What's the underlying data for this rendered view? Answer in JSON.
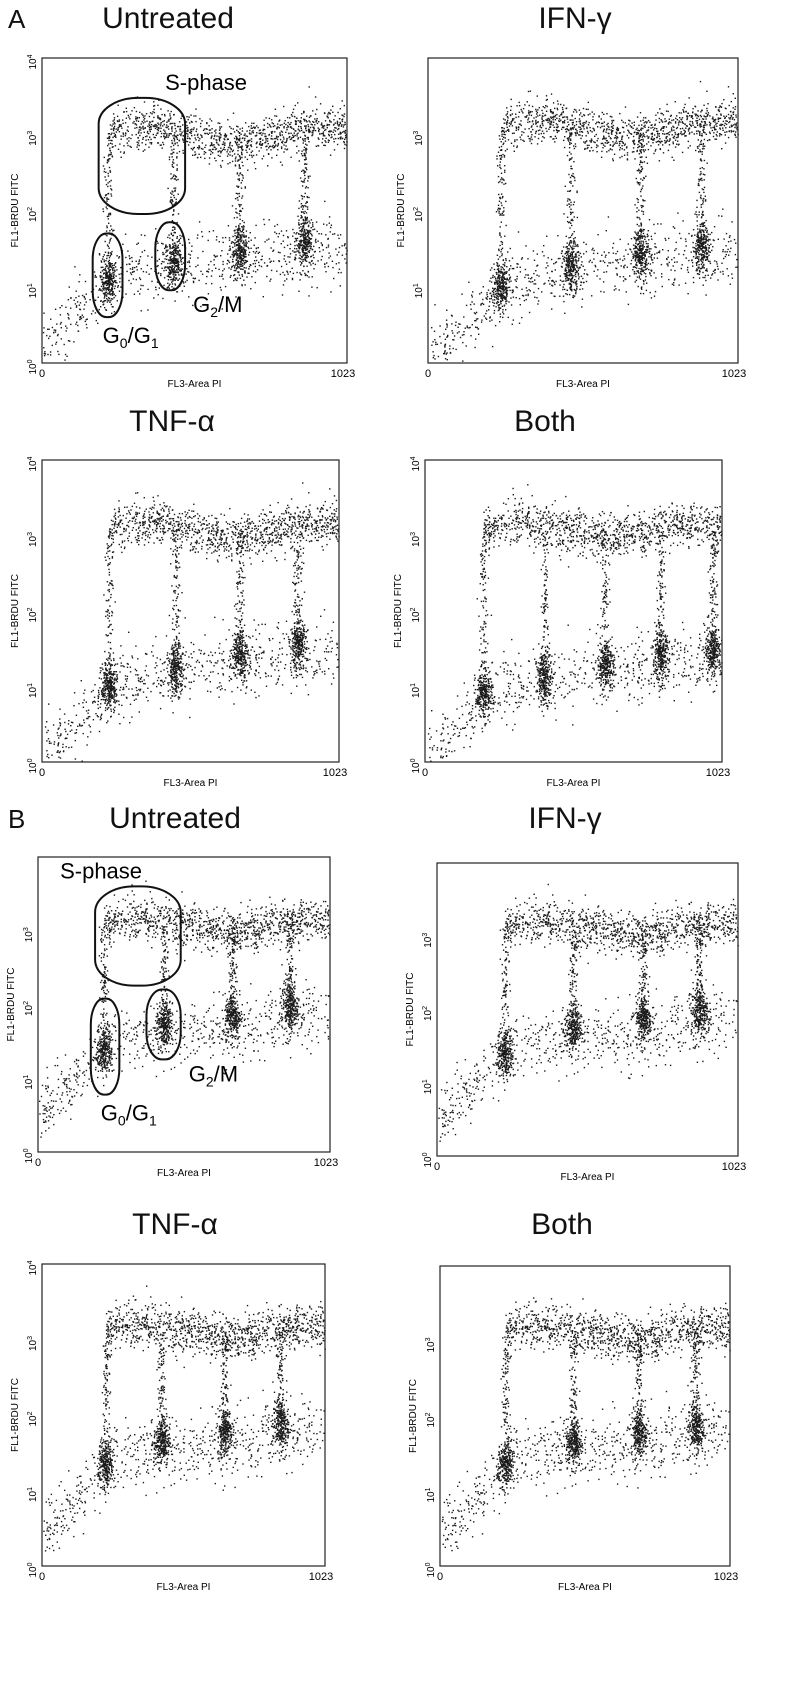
{
  "figure": {
    "panel_labels": [
      "A",
      "B"
    ],
    "xlabel": "FL3-Area PI",
    "ylabel": "FL1-BRDU FITC",
    "x_ticks": [
      "0",
      "1023"
    ],
    "gate_labels": {
      "s_phase": "S-phase",
      "g0g1": "G0/G1",
      "g2m": "G2/M"
    },
    "titles": {
      "untreated": "Untreated",
      "ifn": "IFN-γ",
      "tnf": "TNF-α",
      "both": "Both"
    }
  },
  "chart_data": [
    {
      "type": "scatter",
      "panel": "A",
      "title": "Untreated",
      "xlabel": "FL3-Area PI",
      "ylabel": "FL1-BRDU FITC",
      "xlim": [
        0,
        1023
      ],
      "ylim_log10": [
        0,
        4
      ],
      "y_tick_exponents": [
        0,
        1,
        2,
        3,
        4
      ],
      "gated": true,
      "clusters": [
        {
          "x": 220,
          "y": 12,
          "label": "G0/G1"
        },
        {
          "x": 440,
          "y": 20,
          "label": "G2/M"
        },
        {
          "x": 660,
          "y": 30
        },
        {
          "x": 880,
          "y": 38
        }
      ],
      "s_phase_y": 1000,
      "gates": [
        {
          "label": "S-phase",
          "x": [
            190,
            480
          ],
          "y": [
            90,
            3000
          ]
        },
        {
          "label": "G0/G1",
          "x": [
            170,
            270
          ],
          "y": [
            4,
            50
          ]
        },
        {
          "label": "G2/M",
          "x": [
            380,
            480
          ],
          "y": [
            9,
            70
          ]
        }
      ]
    },
    {
      "type": "scatter",
      "panel": "A",
      "title": "IFN-γ",
      "xlabel": "FL3-Area PI",
      "ylabel": "FL1-BRDU FITC",
      "xlim": [
        0,
        1023
      ],
      "ylim_log10": [
        0,
        4
      ],
      "y_tick_exponents": [
        1,
        2,
        3
      ],
      "gated": false,
      "clusters": [
        {
          "x": 240,
          "y": 10
        },
        {
          "x": 470,
          "y": 18
        },
        {
          "x": 700,
          "y": 28
        },
        {
          "x": 900,
          "y": 32
        }
      ],
      "s_phase_y": 1200
    },
    {
      "type": "scatter",
      "panel": "A",
      "title": "TNF-α",
      "xlabel": "FL3-Area PI",
      "ylabel": "FL1-BRDU FITC",
      "xlim": [
        0,
        1023
      ],
      "ylim_log10": [
        0,
        4
      ],
      "y_tick_exponents": [
        0,
        1,
        2,
        3,
        4
      ],
      "gated": false,
      "clusters": [
        {
          "x": 230,
          "y": 10
        },
        {
          "x": 460,
          "y": 17
        },
        {
          "x": 680,
          "y": 27
        },
        {
          "x": 880,
          "y": 35
        }
      ],
      "s_phase_y": 1200
    },
    {
      "type": "scatter",
      "panel": "A",
      "title": "Both",
      "xlabel": "FL3-Area PI",
      "ylabel": "FL1-BRDU FITC",
      "xlim": [
        0,
        1023
      ],
      "ylim_log10": [
        0,
        4
      ],
      "y_tick_exponents": [
        0,
        1,
        2,
        3,
        4
      ],
      "gated": false,
      "clusters": [
        {
          "x": 200,
          "y": 8
        },
        {
          "x": 410,
          "y": 13
        },
        {
          "x": 620,
          "y": 20
        },
        {
          "x": 810,
          "y": 25
        },
        {
          "x": 990,
          "y": 30
        }
      ],
      "s_phase_y": 1200
    },
    {
      "type": "scatter",
      "panel": "B",
      "title": "Untreated",
      "xlabel": "FL3-Area PI",
      "ylabel": "FL1-BRDU FITC",
      "xlim": [
        0,
        1023
      ],
      "ylim_log10": [
        0,
        4
      ],
      "y_tick_exponents": [
        0,
        1,
        2,
        3
      ],
      "gated": true,
      "clusters": [
        {
          "x": 230,
          "y": 25,
          "label": "G0/G1"
        },
        {
          "x": 440,
          "y": 50,
          "label": "G2/M"
        },
        {
          "x": 680,
          "y": 70
        },
        {
          "x": 880,
          "y": 95
        }
      ],
      "s_phase_y": 1200,
      "gates": [
        {
          "label": "S-phase",
          "x": [
            200,
            500
          ],
          "y": [
            180,
            4000
          ]
        },
        {
          "label": "G0/G1",
          "x": [
            185,
            285
          ],
          "y": [
            6,
            120
          ]
        },
        {
          "label": "G2/M",
          "x": [
            380,
            500
          ],
          "y": [
            18,
            160
          ]
        }
      ]
    },
    {
      "type": "scatter",
      "panel": "B",
      "title": "IFN-γ",
      "xlabel": "FL3-Area PI",
      "ylabel": "FL1-BRDU FITC",
      "xlim": [
        0,
        1023
      ],
      "ylim_log10": [
        0,
        4
      ],
      "y_tick_exponents": [
        0,
        1,
        2,
        3
      ],
      "gated": false,
      "clusters": [
        {
          "x": 230,
          "y": 25
        },
        {
          "x": 460,
          "y": 55
        },
        {
          "x": 700,
          "y": 75
        },
        {
          "x": 890,
          "y": 95
        }
      ],
      "s_phase_y": 1300
    },
    {
      "type": "scatter",
      "panel": "B",
      "title": "TNF-α",
      "xlabel": "FL3-Area PI",
      "ylabel": "FL1-BRDU FITC",
      "xlim": [
        0,
        1023
      ],
      "ylim_log10": [
        0,
        4
      ],
      "y_tick_exponents": [
        0,
        1,
        2,
        3,
        4
      ],
      "gated": false,
      "clusters": [
        {
          "x": 230,
          "y": 22
        },
        {
          "x": 430,
          "y": 45
        },
        {
          "x": 660,
          "y": 60
        },
        {
          "x": 860,
          "y": 75
        }
      ],
      "s_phase_y": 1300
    },
    {
      "type": "scatter",
      "panel": "B",
      "title": "Both",
      "xlabel": "FL3-Area PI",
      "ylabel": "FL1-BRDU FITC",
      "xlim": [
        0,
        1023
      ],
      "ylim_log10": [
        0,
        4
      ],
      "y_tick_exponents": [
        0,
        1,
        2,
        3
      ],
      "gated": false,
      "clusters": [
        {
          "x": 230,
          "y": 22
        },
        {
          "x": 470,
          "y": 45
        },
        {
          "x": 700,
          "y": 60
        },
        {
          "x": 900,
          "y": 70
        }
      ],
      "s_phase_y": 1300
    }
  ]
}
